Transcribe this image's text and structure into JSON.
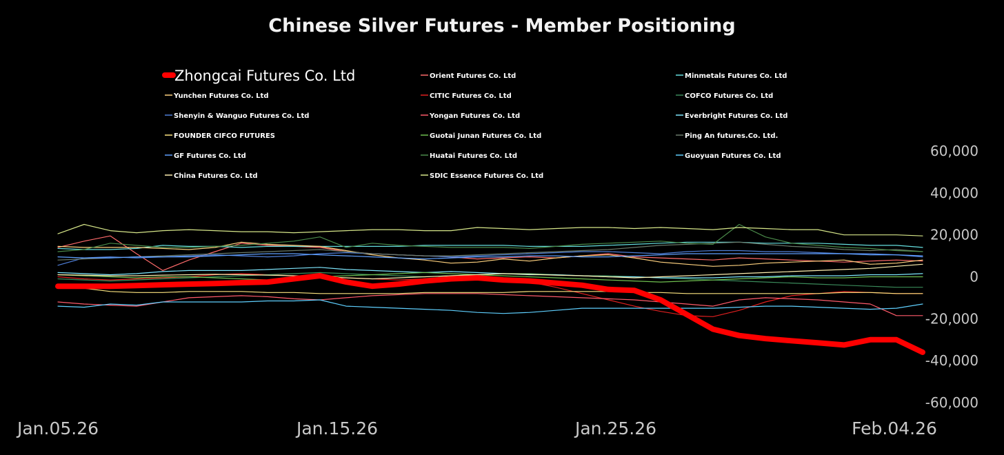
{
  "chart_data": {
    "type": "line",
    "title": "Chinese Silver Futures - Member Positioning",
    "xlabel": "",
    "ylabel": "",
    "ylim": [
      -60000,
      60000
    ],
    "y_ticks": [
      60000,
      40000,
      20000,
      0,
      -20000,
      -40000,
      -60000
    ],
    "y_tick_labels": [
      "60,000",
      "40,000",
      "20,000",
      "0",
      "-20,000",
      "-40,000",
      "-60,000"
    ],
    "x_tick_labels": [
      "Jan.05.26",
      "Jan.15.26",
      "Jan.25.26",
      "Feb.04.26"
    ],
    "grid": false,
    "legend_position": "top",
    "series": [
      {
        "name": "Zhongcai Futures Co.  Ltd",
        "color": "#ff0000",
        "width": 8,
        "values": [
          -4500,
          -4500,
          -4500,
          -4200,
          -3800,
          -3500,
          -3200,
          -2800,
          -2500,
          -1000,
          500,
          -2500,
          -4500,
          -3500,
          -2000,
          -1000,
          -500,
          -1500,
          -2000,
          -3000,
          -4000,
          -6000,
          -6500,
          -11000,
          -18000,
          -25000,
          -28000,
          -29500,
          -30500,
          -31500,
          -32500,
          -30000,
          -30000,
          -36000
        ]
      },
      {
        "name": "Orient Futures Co.  Ltd",
        "color": "#ff6b6b",
        "width": 1.2,
        "values": [
          14000,
          17000,
          19500,
          11000,
          3000,
          8000,
          12000,
          16000,
          15000,
          14500,
          14000,
          12000,
          11000,
          10500,
          10000,
          9500,
          8500,
          9000,
          9500,
          9000,
          10000,
          11000,
          9500,
          9000,
          8500,
          8000,
          9000,
          8500,
          8000,
          7500,
          7000,
          7500,
          8000,
          7500
        ]
      },
      {
        "name": "Minmetals Futures Co.  Ltd",
        "color": "#66e0e0",
        "width": 1.2,
        "values": [
          13500,
          13000,
          13000,
          13500,
          15000,
          14500,
          14500,
          14000,
          14500,
          14500,
          14500,
          14500,
          14500,
          14500,
          15000,
          15000,
          15000,
          15000,
          14500,
          14500,
          14500,
          15000,
          15500,
          16000,
          16500,
          16500,
          16500,
          16000,
          16000,
          16000,
          15500,
          15000,
          15000,
          14000
        ]
      },
      {
        "name": "Yunchen Futures Co.  Ltd",
        "color": "#ffd27f",
        "width": 1.2,
        "values": [
          14500,
          14000,
          14000,
          14000,
          13500,
          13000,
          14000,
          16500,
          15500,
          15000,
          14500,
          12500,
          10500,
          9000,
          8000,
          6500,
          7000,
          8500,
          7500,
          9000,
          10000,
          10500,
          9000,
          7000,
          6000,
          5000,
          5500,
          6500,
          7000,
          7500,
          8000,
          6000,
          6500,
          8000
        ]
      },
      {
        "name": "CITIC Futures Co.  Ltd",
        "color": "#e02020",
        "width": 1.2,
        "values": [
          0,
          -1000,
          -1500,
          -1000,
          -500,
          0,
          1000,
          1500,
          1000,
          500,
          0,
          -500,
          -1000,
          -1500,
          -1000,
          -500,
          -1000,
          -1500,
          -2500,
          -5000,
          -8000,
          -11000,
          -14000,
          -16500,
          -18500,
          -19000,
          -16000,
          -12000,
          -9000,
          -8000,
          -7000,
          -7500,
          -8000,
          -8000
        ]
      },
      {
        "name": "COFCO Futures Co.  Ltd",
        "color": "#3a8a5a",
        "width": 1.2,
        "values": [
          -1000,
          -1500,
          -2000,
          -1500,
          -1000,
          -500,
          0,
          500,
          1000,
          1500,
          2000,
          1500,
          1000,
          500,
          0,
          500,
          1000,
          1500,
          1500,
          1000,
          500,
          500,
          0,
          -500,
          -1000,
          -1500,
          -2000,
          -2500,
          -3000,
          -3500,
          -4000,
          -4500,
          -5000,
          -5000
        ]
      },
      {
        "name": "Shenyin & Wanguo Futures Co.  Ltd",
        "color": "#4f7fd9",
        "width": 1.2,
        "values": [
          5500,
          9000,
          9500,
          9000,
          9500,
          10000,
          10500,
          10000,
          9500,
          10000,
          11000,
          11500,
          11000,
          10500,
          10000,
          9500,
          10000,
          10500,
          11000,
          11500,
          12000,
          12000,
          11500,
          11000,
          12000,
          12500,
          12500,
          12000,
          12000,
          11500,
          11000,
          11000,
          10500,
          9500
        ]
      },
      {
        "name": "Yongan Futures Co.  Ltd",
        "color": "#ff5b6b",
        "width": 1.2,
        "values": [
          -12000,
          -13000,
          -13500,
          -14000,
          -12000,
          -10000,
          -9500,
          -9000,
          -9500,
          -10500,
          -11000,
          -10000,
          -9000,
          -8500,
          -8000,
          -8000,
          -8000,
          -8500,
          -9000,
          -9500,
          -10000,
          -10500,
          -11000,
          -12000,
          -13000,
          -14000,
          -11000,
          -10000,
          -10500,
          -11000,
          -12000,
          -13000,
          -18500,
          -18500
        ]
      },
      {
        "name": "Everbright Futures Co.  Ltd",
        "color": "#7fe8ff",
        "width": 1.2,
        "values": [
          2000,
          1500,
          1000,
          1500,
          2500,
          3000,
          3000,
          3000,
          3500,
          4000,
          4500,
          3500,
          3000,
          2500,
          2000,
          2500,
          2000,
          1500,
          1000,
          1000,
          500,
          0,
          0,
          -500,
          -500,
          -500,
          0,
          0,
          500,
          500,
          500,
          1000,
          1000,
          1500
        ]
      },
      {
        "name": "FOUNDER CIFCO FUTURES",
        "color": "#ffe680",
        "width": 1.2,
        "values": [
          -5000,
          -5500,
          -7000,
          -7500,
          -7500,
          -7000,
          -7000,
          -7000,
          -7500,
          -7500,
          -8000,
          -8000,
          -8000,
          -8000,
          -7500,
          -7500,
          -7500,
          -7500,
          -7000,
          -7000,
          -7000,
          -7000,
          -7500,
          -7500,
          -8000,
          -8000,
          -8000,
          -8000,
          -8000,
          -8000,
          -7500,
          -7500,
          -8000,
          -8000
        ]
      },
      {
        "name": "Guotai Junan Futures Co.  Ltd",
        "color": "#6fbf4f",
        "width": 1.2,
        "values": [
          1000,
          500,
          0,
          -500,
          0,
          0,
          -500,
          -1000,
          -1500,
          -1000,
          0,
          500,
          1000,
          1500,
          2000,
          1500,
          1000,
          500,
          0,
          -500,
          -1000,
          -1500,
          -2000,
          -2500,
          -2000,
          -1500,
          -1000,
          -500,
          0,
          -500,
          -500,
          0,
          0,
          0
        ]
      },
      {
        "name": "Ping An futures.Co. Ltd.",
        "color": "#6a7a6a",
        "width": 1.2,
        "values": [
          8000,
          8500,
          9000,
          9500,
          10000,
          10500,
          11000,
          11500,
          12000,
          12500,
          13000,
          12000,
          11000,
          10500,
          10000,
          10000,
          10500,
          11000,
          11500,
          12000,
          12500,
          13000,
          14000,
          15000,
          15500,
          16000,
          16500,
          15500,
          14500,
          14000,
          13000,
          12500,
          13000,
          12000
        ]
      },
      {
        "name": "GF Futures Co.  Ltd",
        "color": "#5fa0ff",
        "width": 1.2,
        "values": [
          9500,
          9000,
          9000,
          9500,
          9500,
          9500,
          10000,
          10500,
          11000,
          11000,
          10500,
          10000,
          9500,
          9000,
          8500,
          9000,
          9500,
          9500,
          10000,
          10000,
          9500,
          9500,
          10000,
          10500,
          11000,
          11000,
          11000,
          11000,
          11000,
          11000,
          11000,
          10500,
          10500,
          10000
        ]
      },
      {
        "name": "Huatai Futures Co.  Ltd",
        "color": "#4a8a4a",
        "width": 1.2,
        "values": [
          12000,
          13000,
          16000,
          15000,
          14000,
          14000,
          14500,
          15000,
          16000,
          17000,
          19000,
          14000,
          16000,
          15000,
          14500,
          14000,
          14000,
          14000,
          13500,
          14500,
          15500,
          16000,
          16500,
          17000,
          16000,
          15500,
          25000,
          19000,
          16000,
          15000,
          14000,
          13500,
          12500,
          12000
        ]
      },
      {
        "name": "Guoyuan Futures Co.  Ltd",
        "color": "#5fd0ff",
        "width": 1.2,
        "values": [
          -14000,
          -14500,
          -13000,
          -13500,
          -12000,
          -12000,
          -12000,
          -12000,
          -11500,
          -11500,
          -11000,
          -14000,
          -14500,
          -15000,
          -15500,
          -16000,
          -17000,
          -17500,
          -17000,
          -16000,
          -15000,
          -15000,
          -15000,
          -15000,
          -15000,
          -15000,
          -14500,
          -14000,
          -14000,
          -14500,
          -15000,
          -15500,
          -15000,
          -13000
        ]
      },
      {
        "name": "China Futures Co.  Ltd",
        "color": "#fff0b0",
        "width": 1.2,
        "values": [
          1000,
          800,
          500,
          500,
          800,
          1000,
          1200,
          1000,
          800,
          500,
          0,
          -500,
          -1000,
          -500,
          0,
          500,
          1000,
          1500,
          1200,
          800,
          500,
          0,
          -500,
          0,
          500,
          1000,
          1500,
          2000,
          2500,
          3000,
          3500,
          4000,
          5000,
          6000
        ]
      },
      {
        "name": "SDIC Essence Futures Co.  Ltd",
        "color": "#d8e88a",
        "width": 1.2,
        "values": [
          20500,
          25000,
          22000,
          21000,
          22000,
          22500,
          22000,
          21500,
          21500,
          21000,
          21500,
          22000,
          22500,
          22500,
          22000,
          22000,
          23500,
          23000,
          22500,
          23000,
          23500,
          23500,
          23000,
          23500,
          23000,
          22500,
          23500,
          23000,
          22500,
          22500,
          20000,
          20000,
          20000,
          19500
        ]
      }
    ]
  }
}
